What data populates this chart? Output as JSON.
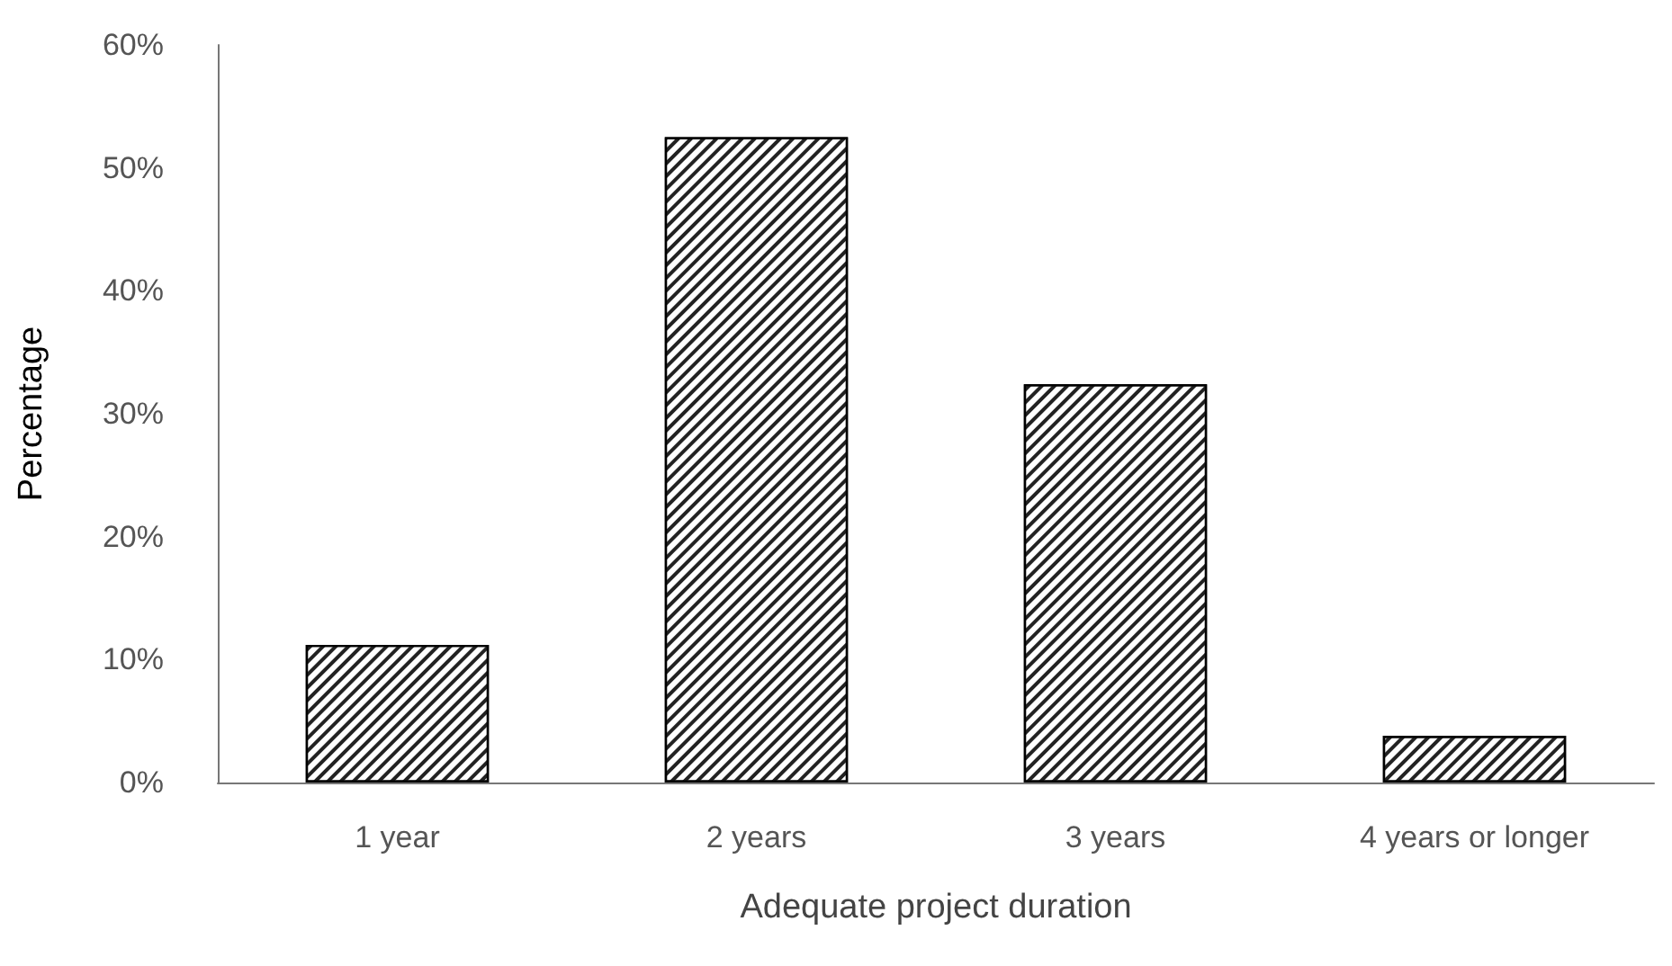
{
  "chart_data": {
    "type": "bar",
    "xlabel": "Adequate project duration",
    "ylabel": "Percentage",
    "categories": [
      "1 year",
      "2 years",
      "3 years",
      "4 years or longer"
    ],
    "values": [
      11.2,
      52.5,
      32.4,
      3.8
    ],
    "color": "#ffffff",
    "ylim": [
      0,
      60
    ],
    "yticks": [
      {
        "value": 0,
        "label": "0%"
      },
      {
        "value": 10,
        "label": "10%"
      },
      {
        "value": 20,
        "label": "20%"
      },
      {
        "value": 30,
        "label": "30%"
      },
      {
        "value": 40,
        "label": "40%"
      },
      {
        "value": 50,
        "label": "50%"
      },
      {
        "value": 60,
        "label": "60%"
      }
    ],
    "grid": false
  }
}
